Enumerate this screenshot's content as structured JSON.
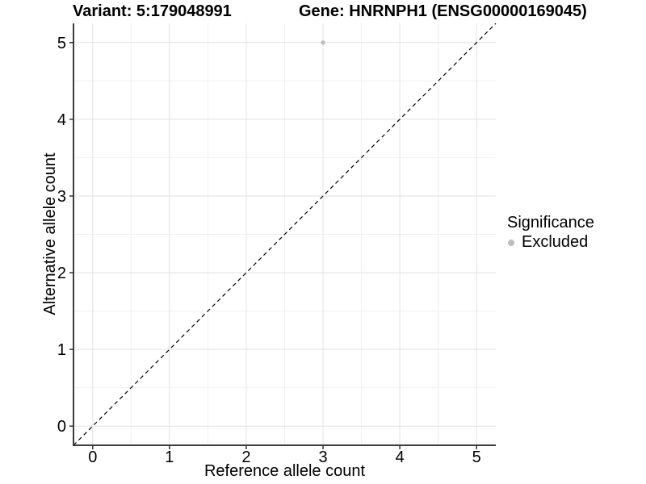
{
  "chart_data": {
    "type": "scatter",
    "title_left": "Variant: 5:179048991",
    "title_right": "Gene: HNRNPH1 (ENSG00000169045)",
    "xlabel": "Reference allele count",
    "ylabel": "Alternative allele count",
    "xlim": [
      -0.25,
      5.25
    ],
    "ylim": [
      -0.25,
      5.25
    ],
    "x_ticks": [
      0,
      1,
      2,
      3,
      4,
      5
    ],
    "y_ticks": [
      0,
      1,
      2,
      3,
      4,
      5
    ],
    "grid": "major and minor gridlines on white background",
    "legend_position": "right",
    "legend": {
      "title": "Significance",
      "items": [
        {
          "label": "Excluded",
          "color": "#bdbdbd"
        }
      ]
    },
    "series": [
      {
        "name": "Excluded",
        "color": "#bdbdbd",
        "point_radius": 2.7,
        "points": [
          {
            "x": 3,
            "y": 5
          }
        ]
      }
    ],
    "reference_line": {
      "kind": "identity y=x",
      "style": "dashed",
      "color": "#000000"
    }
  },
  "colors": {
    "background": "#ffffff",
    "grid_major": "#e2e2e2",
    "grid_minor": "#f0f0f0",
    "axis": "#3c3c3c",
    "tick": "#333333",
    "text": "#000000"
  }
}
